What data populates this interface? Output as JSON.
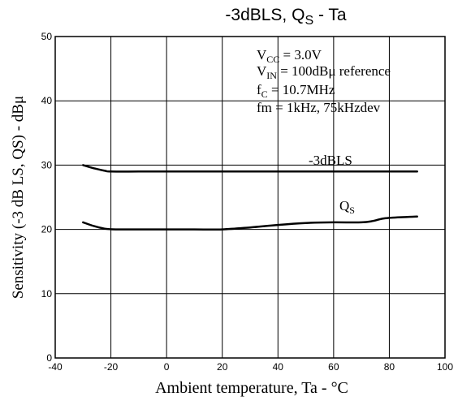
{
  "chart_data": {
    "type": "line",
    "title": {
      "main": "-3dBLS, Q",
      "sub": "S",
      "tail": " - Ta"
    },
    "xlabel": "Ambient temperature, Ta - °C",
    "ylabel": "Sensitivity (-3 dB LS, QS) - dBμ",
    "xlim": [
      -40,
      100
    ],
    "ylim": [
      0,
      50
    ],
    "xticks": [
      -40,
      -20,
      0,
      20,
      40,
      60,
      80,
      100
    ],
    "yticks": [
      0,
      10,
      20,
      30,
      40,
      50
    ],
    "grid": true,
    "series": [
      {
        "name": "-3dBLS",
        "x": [
          -30,
          -26,
          -22,
          -20,
          -10,
          0,
          20,
          40,
          60,
          80,
          90
        ],
        "y": [
          30,
          29.5,
          29.1,
          29,
          29,
          29,
          29,
          29,
          29,
          29,
          29
        ]
      },
      {
        "name": "QS",
        "x": [
          -30,
          -26,
          -22,
          -18,
          -10,
          0,
          10,
          20,
          30,
          40,
          50,
          60,
          70,
          74,
          78,
          84,
          90
        ],
        "y": [
          21.1,
          20.5,
          20.1,
          20,
          20,
          20,
          20,
          20,
          20.3,
          20.7,
          21,
          21.1,
          21.1,
          21.3,
          21.7,
          21.9,
          22
        ]
      }
    ],
    "annotations": [
      {
        "base": "V",
        "sub": "CC",
        "text": " = 3.0V"
      },
      {
        "base": "V",
        "sub": "IN",
        "text": " = 100dBμ reference"
      },
      {
        "base": "f",
        "sub": "C",
        "text": " = 10.7MHz"
      },
      {
        "base": "",
        "sub": "",
        "text": "fm = 1kHz, 75kHzdev"
      }
    ],
    "series_labels": [
      {
        "base": "-3dBLS",
        "sub": ""
      },
      {
        "base": "Q",
        "sub": "S"
      }
    ]
  }
}
